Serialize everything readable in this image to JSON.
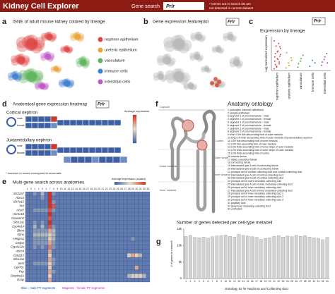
{
  "header": {
    "title": "Kidney Cell Explorer",
    "search_label": "Gene search",
    "search_value": "Prlr",
    "note": [
      "* Genes not in search list are",
      "not detected in current dataset"
    ]
  },
  "panels": {
    "a": {
      "letter": "a",
      "title": "tSNE of adult mouse kidney colored by lineage",
      "legend": [
        {
          "name": "nephron epithelium",
          "color": "#e04848"
        },
        {
          "name": "ureteric epithelium",
          "color": "#e8a33a"
        },
        {
          "name": "vasculature",
          "color": "#5fb55f"
        },
        {
          "name": "immune cells",
          "color": "#3f7fd0"
        },
        {
          "name": "interstitial cells",
          "color": "#c05ac8"
        }
      ]
    },
    "b": {
      "letter": "b",
      "title": "Gene expression featureplot",
      "gene": "Prlr"
    },
    "c": {
      "letter": "c",
      "gene": "Prlr"
    },
    "d": {
      "letter": "d",
      "title": "Anatomical gene expression heatmap",
      "gene": "Prlr",
      "legend_title": "Average expression",
      "rows": [
        "Cortical nephron",
        "Juxtamedullary nephron"
      ],
      "sex_labels": [
        "male",
        "female"
      ],
      "footnote": "* numbers in boxes correspond to schematic"
    },
    "e": {
      "letter": "e"
    },
    "f": {
      "letter": "f",
      "title": "Anatomy ontology",
      "regions": [
        "Capsule",
        "Cortex",
        "Outer stripe",
        "Inner stripe",
        "Outer medulla",
        "Inner medulla"
      ],
      "items": [
        "1 podocytes (visceral epithelium)",
        "2 parietal epithelium",
        "3 segment 1 of proximal tubule - male",
        "4 segment 1 of proximal tubule - female",
        "5 segment 2 of proximal tubule - male",
        "6 segment 2 of proximal tubule - female",
        "7 segment 3 of proximal tubule - male",
        "8 segment 3 of proximal tubule - female",
        "9 short LOH thin descending limb of outer medulla",
        "10 long LOH thin descending limb of outer medulla of juxtamedullary nephron",
        "11 LOH thin descending limb of inner medulla",
        "12 LOH thin ascending limb of inner medulla",
        "13 LOH thick ascending limb of inner stripe of outer medulla",
        "14 LOH thick ascending limb of outer stripe of outer medulla",
        "15 LOH thick ascending limb of cortex",
        "16 macula densa",
        "17 distal convoluted tubule",
        "18 connecting tubule",
        "19 intercalated type A cell of connecting tubule",
        "20 intercalated type B cell of connecting tubule",
        "21 principal cell of cortical collecting duct and cortical collecting duct",
        "22 intercalated type A cell of cortical collecting duct",
        "23 intercalated type B cell of cortical collecting duct",
        "24 principal cell of outer medullary collecting duct",
        "25 intercalated type A cell of outer medullary collecting duct",
        "26 principal cell of inner medullary collecting duct",
        "27 intercalated type A cell of inner medullary collecting duct",
        "28 principal cell of inner medullary collecting duct 1",
        "29 principal cell of inner medullary collecting duct 2",
        "30 principal cell of inner medullary collecting duct 3",
        "31 papillary duct",
        "32 deep inner medullary collecting duct",
        "33 urothelium"
      ]
    },
    "g": {
      "letter": "g"
    }
  },
  "chart_data": [
    {
      "type": "strip",
      "title": "Expression by lineage",
      "ylabel": "Log normalized expression",
      "categories": [
        "nephron epithelium",
        "ureteric epithelium",
        "vasculature",
        "immune cells",
        "interstitial cells"
      ],
      "colors": [
        "#e04848",
        "#c9a227",
        "#4aa84a",
        "#3f7fd0",
        "#a64fc0"
      ],
      "values": [
        [
          0.2,
          0.5,
          0.8,
          1.1,
          1.4,
          1.7,
          2.0,
          2.3,
          2.6,
          2.9,
          3.2,
          3.5,
          0.4,
          1.0,
          1.6,
          2.2,
          2.8,
          0.7,
          1.3,
          1.9
        ],
        [
          0.3,
          0.9,
          1.5,
          2.1,
          0.6,
          1.2
        ],
        [
          0.4,
          1.1,
          1.8,
          0.8,
          1.4
        ],
        [
          0.5,
          1.2,
          0.9
        ],
        [
          0.6,
          1.3,
          2.0,
          1.0,
          1.6,
          0.9
        ]
      ],
      "ylim": [
        0,
        4
      ]
    },
    {
      "type": "heatmap",
      "title": "Multi-gene search across anatomies",
      "legend_title": "Average expression (scaled)",
      "rows": [
        "Slc22a7",
        "Abcc3",
        "Slc7a12",
        "Prlr",
        "Acot7",
        "Akr1c18",
        "Ceacam2",
        "Slco1a1",
        "Cyp4a14",
        "Bhmt",
        "Kynu",
        "Hmgcs2",
        "Cndp2",
        "Cyp4a12a",
        "Abcc4",
        "Cyp2j13",
        "Slco1a6",
        "Inmt",
        "Cyp7b1",
        "Pzp",
        "Serpina1e",
        "Gsap"
      ],
      "columns": [
        "1",
        "2",
        "3",
        "4",
        "5",
        "6",
        "7",
        "8",
        "9",
        "10",
        "11",
        "12",
        "13",
        "14",
        "15",
        "16",
        "17",
        "18",
        "19",
        "20",
        "21",
        "22",
        "23",
        "24",
        "25",
        "26",
        "27",
        "28",
        "29",
        "30",
        "31",
        "32",
        "33"
      ],
      "column_colors": [
        "#222",
        "#222",
        "#1f3fbf",
        "#c020c0",
        "#1f3fbf",
        "#c020c0",
        "#1f3fbf",
        "#c020c0",
        "#222",
        "#222",
        "#222",
        "#222",
        "#222",
        "#222",
        "#222",
        "#222",
        "#222",
        "#222",
        "#222",
        "#222",
        "#222",
        "#222",
        "#222",
        "#222",
        "#222",
        "#222",
        "#222",
        "#222",
        "#222",
        "#222",
        "#222",
        "#222",
        "#222"
      ],
      "colormap": [
        "#3a5ea8",
        "#e9e2c6",
        "#d62f26"
      ],
      "vlim": [
        0,
        9
      ],
      "values": [
        [
          1,
          1,
          2,
          1,
          3,
          1,
          9,
          2,
          1,
          1,
          1,
          1,
          1,
          1,
          1,
          1,
          1,
          1,
          1,
          1,
          1,
          1,
          1,
          1,
          1,
          1,
          1,
          1,
          1,
          1,
          1,
          1,
          1
        ],
        [
          1,
          1,
          1,
          1,
          2,
          1,
          9,
          1,
          1,
          1,
          1,
          1,
          1,
          1,
          1,
          1,
          1,
          1,
          1,
          1,
          1,
          1,
          1,
          1,
          1,
          1,
          1,
          1,
          1,
          1,
          1,
          1,
          1
        ],
        [
          1,
          1,
          1,
          1,
          1,
          1,
          9,
          2,
          1,
          1,
          1,
          1,
          1,
          1,
          1,
          1,
          1,
          1,
          1,
          1,
          1,
          1,
          1,
          1,
          1,
          1,
          1,
          1,
          1,
          1,
          1,
          1,
          1
        ],
        [
          1,
          1,
          1,
          1,
          1,
          1,
          9,
          8,
          1,
          1,
          1,
          1,
          1,
          1,
          1,
          1,
          1,
          1,
          1,
          1,
          1,
          1,
          1,
          1,
          1,
          1,
          1,
          1,
          1,
          1,
          1,
          1,
          1
        ],
        [
          1,
          1,
          2,
          2,
          2,
          2,
          8,
          2,
          1,
          1,
          1,
          1,
          1,
          1,
          1,
          1,
          1,
          1,
          1,
          1,
          1,
          1,
          1,
          1,
          1,
          1,
          1,
          1,
          1,
          1,
          1,
          1,
          1
        ],
        [
          1,
          1,
          1,
          1,
          1,
          1,
          9,
          1,
          1,
          1,
          1,
          1,
          1,
          1,
          1,
          1,
          1,
          1,
          1,
          1,
          1,
          1,
          1,
          1,
          1,
          1,
          1,
          1,
          1,
          1,
          1,
          1,
          1
        ],
        [
          1,
          1,
          1,
          1,
          1,
          1,
          8,
          1,
          1,
          1,
          1,
          1,
          1,
          1,
          1,
          1,
          1,
          1,
          1,
          1,
          1,
          1,
          1,
          1,
          1,
          1,
          1,
          1,
          1,
          1,
          1,
          1,
          1
        ],
        [
          1,
          1,
          2,
          1,
          2,
          1,
          9,
          1,
          1,
          1,
          1,
          1,
          1,
          1,
          1,
          1,
          1,
          1,
          1,
          1,
          1,
          1,
          1,
          1,
          1,
          1,
          1,
          1,
          1,
          1,
          1,
          1,
          1
        ],
        [
          1,
          1,
          3,
          1,
          3,
          1,
          8,
          2,
          1,
          1,
          1,
          1,
          1,
          1,
          1,
          1,
          1,
          1,
          1,
          1,
          1,
          1,
          1,
          1,
          1,
          1,
          1,
          1,
          1,
          1,
          1,
          1,
          1
        ],
        [
          1,
          1,
          2,
          2,
          2,
          2,
          6,
          3,
          1,
          1,
          1,
          1,
          1,
          1,
          1,
          1,
          1,
          1,
          1,
          1,
          1,
          1,
          1,
          1,
          1,
          1,
          1,
          1,
          1,
          1,
          1,
          1,
          1
        ],
        [
          1,
          1,
          3,
          3,
          3,
          3,
          5,
          3,
          1,
          1,
          1,
          1,
          1,
          1,
          1,
          1,
          1,
          1,
          1,
          1,
          1,
          1,
          1,
          1,
          1,
          1,
          1,
          1,
          1,
          1,
          1,
          1,
          1
        ],
        [
          1,
          1,
          2,
          2,
          2,
          2,
          5,
          3,
          1,
          1,
          1,
          1,
          1,
          1,
          1,
          1,
          1,
          1,
          1,
          1,
          1,
          1,
          1,
          1,
          1,
          1,
          1,
          1,
          2,
          1,
          1,
          1,
          1
        ],
        [
          1,
          1,
          2,
          2,
          2,
          2,
          6,
          2,
          1,
          1,
          1,
          1,
          1,
          1,
          1,
          1,
          1,
          1,
          1,
          1,
          1,
          1,
          1,
          1,
          1,
          1,
          1,
          1,
          1,
          1,
          1,
          1,
          1
        ],
        [
          1,
          1,
          2,
          1,
          2,
          1,
          7,
          2,
          1,
          1,
          1,
          1,
          1,
          1,
          1,
          1,
          1,
          1,
          1,
          1,
          1,
          1,
          1,
          1,
          1,
          1,
          1,
          1,
          1,
          1,
          1,
          1,
          1
        ],
        [
          1,
          1,
          1,
          1,
          1,
          1,
          6,
          1,
          1,
          1,
          1,
          1,
          1,
          1,
          1,
          1,
          1,
          1,
          1,
          1,
          1,
          1,
          1,
          1,
          1,
          1,
          1,
          1,
          1,
          1,
          1,
          1,
          1
        ],
        [
          1,
          1,
          1,
          1,
          1,
          1,
          5,
          1,
          1,
          1,
          1,
          1,
          1,
          1,
          1,
          1,
          1,
          1,
          1,
          1,
          1,
          1,
          1,
          1,
          1,
          1,
          1,
          4,
          6,
          5,
          3,
          1,
          1
        ],
        [
          1,
          1,
          1,
          1,
          1,
          1,
          6,
          2,
          1,
          1,
          1,
          1,
          1,
          1,
          1,
          1,
          1,
          1,
          1,
          1,
          1,
          1,
          1,
          1,
          1,
          1,
          1,
          1,
          1,
          1,
          1,
          1,
          1
        ],
        [
          1,
          1,
          2,
          2,
          2,
          2,
          5,
          2,
          1,
          1,
          1,
          1,
          1,
          1,
          1,
          1,
          1,
          1,
          1,
          1,
          1,
          1,
          1,
          1,
          1,
          1,
          1,
          1,
          1,
          1,
          1,
          1,
          1
        ],
        [
          1,
          1,
          1,
          1,
          1,
          1,
          5,
          1,
          1,
          1,
          1,
          1,
          1,
          1,
          1,
          1,
          1,
          1,
          1,
          1,
          1,
          1,
          1,
          1,
          1,
          1,
          1,
          1,
          1,
          6,
          1,
          1,
          1
        ],
        [
          1,
          1,
          1,
          1,
          1,
          1,
          6,
          2,
          1,
          1,
          1,
          1,
          1,
          1,
          1,
          1,
          1,
          1,
          1,
          1,
          1,
          1,
          1,
          1,
          1,
          1,
          1,
          1,
          1,
          1,
          1,
          1,
          1
        ],
        [
          1,
          1,
          1,
          1,
          1,
          1,
          5,
          1,
          1,
          1,
          1,
          1,
          1,
          1,
          1,
          1,
          1,
          1,
          1,
          1,
          1,
          1,
          1,
          1,
          1,
          1,
          1,
          3,
          4,
          4,
          5,
          3,
          1
        ],
        [
          1,
          1,
          1,
          1,
          1,
          1,
          6,
          1,
          1,
          1,
          1,
          1,
          1,
          1,
          1,
          1,
          1,
          1,
          1,
          1,
          1,
          1,
          1,
          1,
          1,
          1,
          1,
          1,
          1,
          1,
          1,
          1,
          1
        ]
      ],
      "notes": [
        {
          "text": "Blue - male PT segments",
          "color": "#1f3fbf"
        },
        {
          "text": "Magenta - female PT segments",
          "color": "#c020c0"
        }
      ]
    },
    {
      "type": "bar",
      "title": "Number of genes detected per cell-type metacell",
      "ylabel": "# of genes in metacell",
      "xlabel": "Ontology ID for Nephron and Collecting duct",
      "categories": [
        "1",
        "2",
        "3",
        "4",
        "5",
        "6",
        "7",
        "8",
        "9",
        "10",
        "11",
        "12",
        "13",
        "14",
        "15",
        "16",
        "17",
        "18",
        "19",
        "20",
        "21",
        "22",
        "23",
        "24",
        "25",
        "26",
        "27",
        "28",
        "29",
        "30",
        "31",
        "32",
        "33"
      ],
      "values": [
        12800,
        13100,
        12500,
        12400,
        12600,
        12300,
        12700,
        12900,
        13000,
        13200,
        12800,
        12600,
        13400,
        13100,
        12900,
        12700,
        12500,
        11900,
        12200,
        12400,
        12800,
        13000,
        12600,
        12900,
        12700,
        13100,
        12800,
        13000,
        12600,
        12400,
        12200,
        11800,
        12500
      ],
      "color": "#d3d3d3",
      "ylim": [
        0,
        15000
      ],
      "yticks": [
        0,
        {
          "value": 5000,
          "label": "5k"
        },
        {
          "value": 10000,
          "label": "10k"
        },
        {
          "value": 15000,
          "label": "15k"
        }
      ]
    }
  ]
}
